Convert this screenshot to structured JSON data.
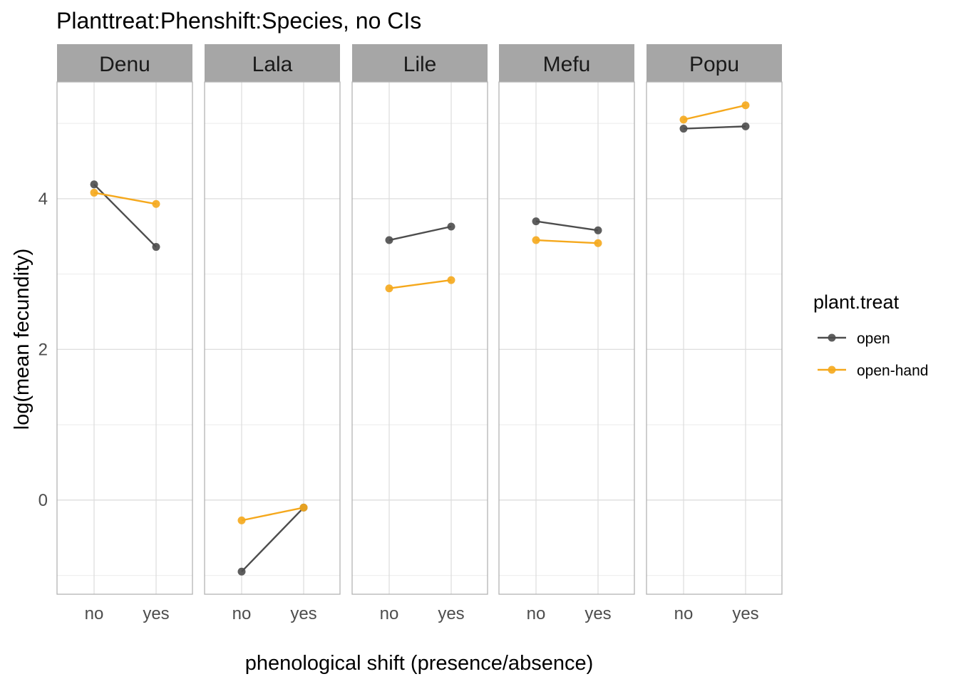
{
  "chart_data": {
    "type": "line",
    "title": "Planttreat:Phenshift:Species, no CIs",
    "xlabel": "phenological shift (presence/absence)",
    "ylabel": "log(mean fecundity)",
    "x_categories": [
      "no",
      "yes"
    ],
    "ylim": [
      -1.25,
      5.55
    ],
    "y_ticks": [
      0,
      2,
      4
    ],
    "y_minor_ticks": [
      -1,
      1,
      3,
      5
    ],
    "grid": true,
    "facet_variable": "species",
    "legend": {
      "title": "plant.treat",
      "position": "right"
    },
    "series": [
      {
        "name": "open",
        "color": "#4d4d4d"
      },
      {
        "name": "open-hand",
        "color": "#f5a81c"
      }
    ],
    "facets": [
      {
        "label": "Denu",
        "values": {
          "open": [
            4.19,
            3.36
          ],
          "open-hand": [
            4.08,
            3.93
          ]
        }
      },
      {
        "label": "Lala",
        "values": {
          "open": [
            -0.95,
            -0.1
          ],
          "open-hand": [
            -0.27,
            -0.1
          ]
        }
      },
      {
        "label": "Lile",
        "values": {
          "open": [
            3.45,
            3.63
          ],
          "open-hand": [
            2.81,
            2.92
          ]
        }
      },
      {
        "label": "Mefu",
        "values": {
          "open": [
            3.7,
            3.58
          ],
          "open-hand": [
            3.45,
            3.41
          ]
        }
      },
      {
        "label": "Popu",
        "values": {
          "open": [
            4.93,
            4.96
          ],
          "open-hand": [
            5.05,
            5.24
          ]
        }
      }
    ]
  }
}
